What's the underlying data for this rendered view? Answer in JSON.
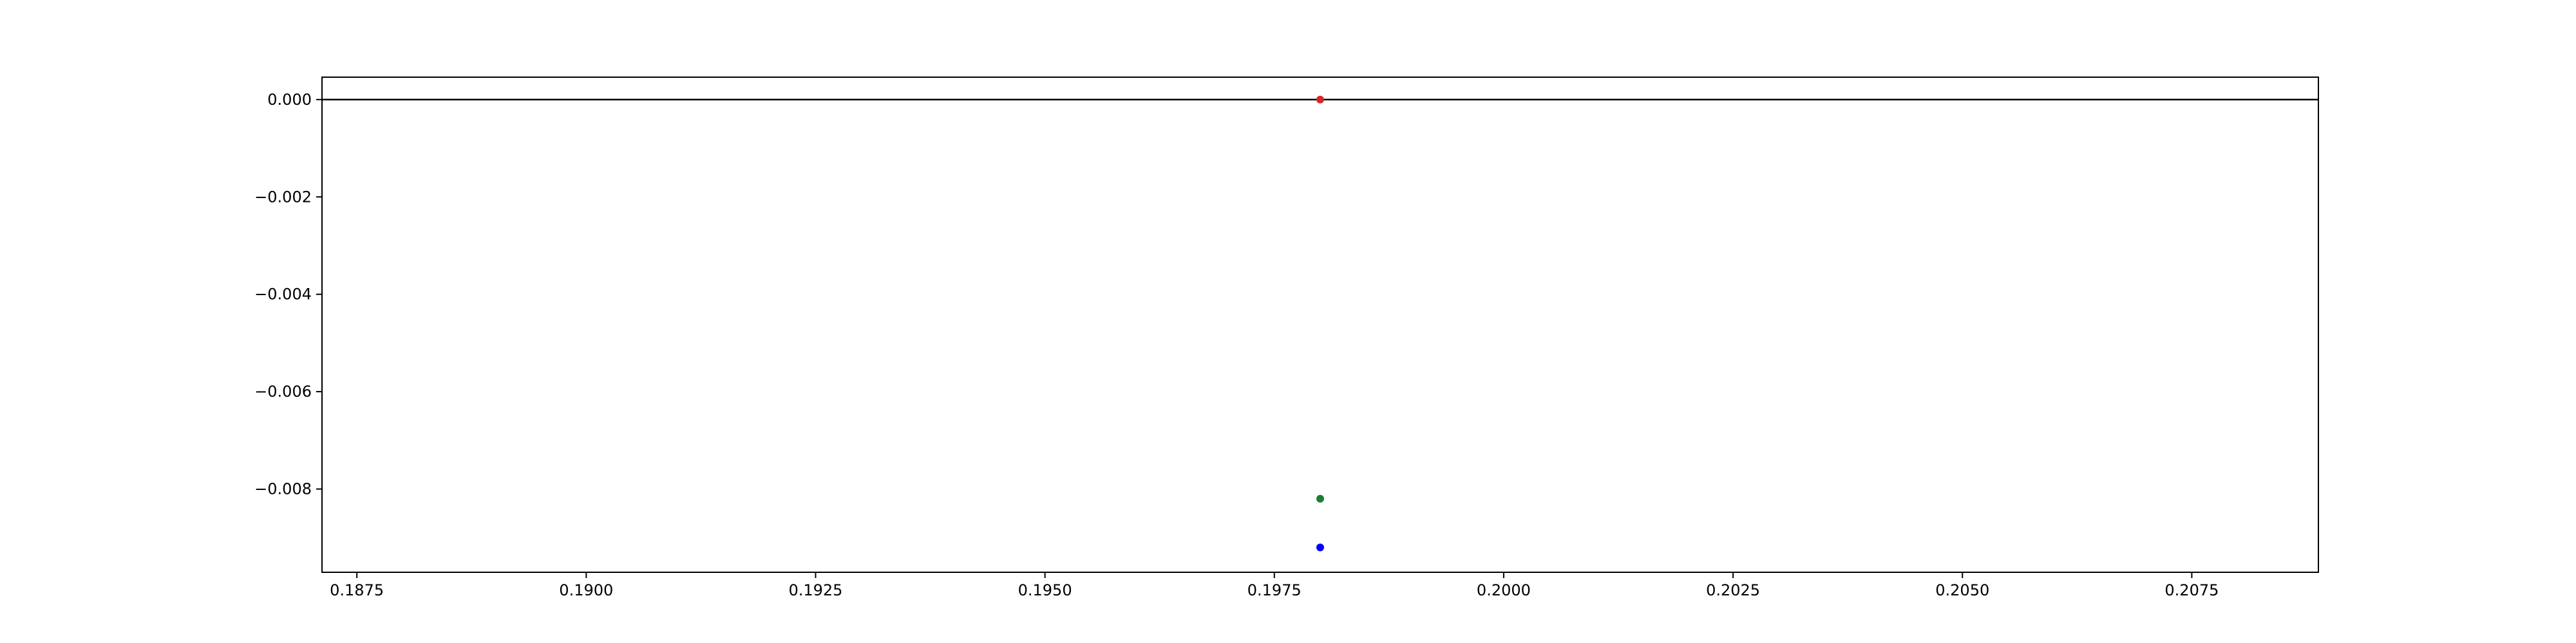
{
  "chart_data": {
    "type": "scatter",
    "title": "",
    "xlabel": "",
    "ylabel": "",
    "xlim": [
      0.18712,
      0.20888
    ],
    "ylim": [
      -0.00971,
      0.00046
    ],
    "grid": false,
    "xticks": [
      0.1875,
      0.19,
      0.1925,
      0.195,
      0.1975,
      0.2,
      0.2025,
      0.205,
      0.2075
    ],
    "xtick_labels": [
      "0.1875",
      "0.1900",
      "0.1925",
      "0.1950",
      "0.1975",
      "0.2000",
      "0.2025",
      "0.2050",
      "0.2075"
    ],
    "yticks": [
      0.0,
      -0.002,
      -0.004,
      -0.006,
      -0.008
    ],
    "ytick_labels": [
      "0.000",
      "−0.002",
      "−0.004",
      "−0.006",
      "−0.008"
    ],
    "hlines": [
      {
        "y": 0.0,
        "color": "#000000"
      }
    ],
    "points": [
      {
        "x": 0.198,
        "y": 0.0,
        "color": "#d62728"
      },
      {
        "x": 0.198,
        "y": -0.0082,
        "color": "#1a7f2e"
      },
      {
        "x": 0.198,
        "y": -0.0092,
        "color": "#0000ff"
      }
    ]
  }
}
